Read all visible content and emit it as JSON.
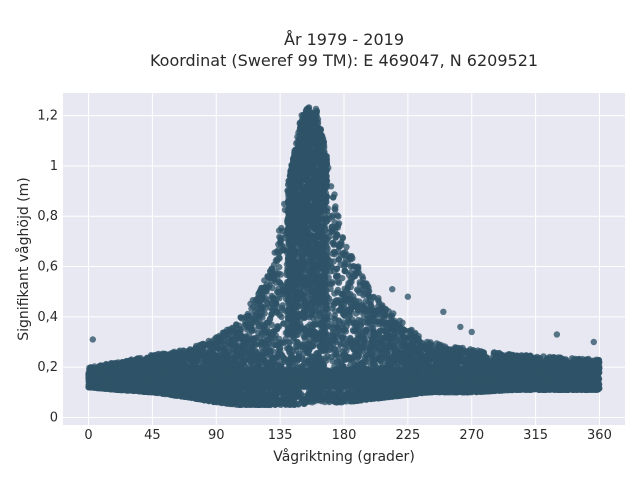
{
  "chart_data": {
    "type": "scatter",
    "title_line1": "År 1979 - 2019",
    "title_line2": "Koordinat (Sweref 99 TM): E 469047, N 6209521",
    "xlabel": "Vågriktning (grader)",
    "ylabel": "Signifikant våghöjd (m)",
    "xlim": [
      -18,
      378
    ],
    "ylim": [
      -0.03,
      1.29
    ],
    "grid": true,
    "marker_color": "#2e5368",
    "plot_background": "#e8e8f2",
    "x_ticks": [
      {
        "value": 0,
        "label": "0"
      },
      {
        "value": 45,
        "label": "45"
      },
      {
        "value": 90,
        "label": "90"
      },
      {
        "value": 135,
        "label": "135"
      },
      {
        "value": 180,
        "label": "180"
      },
      {
        "value": 225,
        "label": "225"
      },
      {
        "value": 270,
        "label": "270"
      },
      {
        "value": 315,
        "label": "315"
      },
      {
        "value": 360,
        "label": "360"
      }
    ],
    "y_ticks": [
      {
        "value": 0,
        "label": "0"
      },
      {
        "value": 0.2,
        "label": "0,2"
      },
      {
        "value": 0.4,
        "label": "0,4"
      },
      {
        "value": 0.6,
        "label": "0,6"
      },
      {
        "value": 0.8,
        "label": "0,8"
      },
      {
        "value": 1.0,
        "label": "1"
      },
      {
        "value": 1.2,
        "label": "1,2"
      }
    ],
    "envelope": {
      "x": [
        0,
        20,
        45,
        70,
        90,
        105,
        120,
        130,
        140,
        150,
        155,
        160,
        165,
        170,
        180,
        195,
        210,
        225,
        240,
        270,
        300,
        330,
        360
      ],
      "y_low": [
        0.12,
        0.11,
        0.1,
        0.08,
        0.06,
        0.05,
        0.05,
        0.05,
        0.05,
        0.05,
        0.06,
        0.06,
        0.06,
        0.06,
        0.06,
        0.07,
        0.08,
        0.09,
        0.1,
        0.1,
        0.11,
        0.11,
        0.11
      ],
      "y_high": [
        0.2,
        0.22,
        0.25,
        0.27,
        0.32,
        0.38,
        0.5,
        0.62,
        0.92,
        1.2,
        1.24,
        1.24,
        1.12,
        0.98,
        0.7,
        0.54,
        0.44,
        0.36,
        0.3,
        0.27,
        0.25,
        0.24,
        0.23
      ]
    },
    "outliers": [
      {
        "x": 3,
        "y": 0.31
      },
      {
        "x": 214,
        "y": 0.51
      },
      {
        "x": 225,
        "y": 0.48
      },
      {
        "x": 250,
        "y": 0.42
      },
      {
        "x": 262,
        "y": 0.36
      },
      {
        "x": 270,
        "y": 0.34
      },
      {
        "x": 330,
        "y": 0.33
      },
      {
        "x": 356,
        "y": 0.3
      },
      {
        "x": 128,
        "y": 0.58
      },
      {
        "x": 185,
        "y": 0.64
      },
      {
        "x": 190,
        "y": 0.6
      }
    ]
  }
}
